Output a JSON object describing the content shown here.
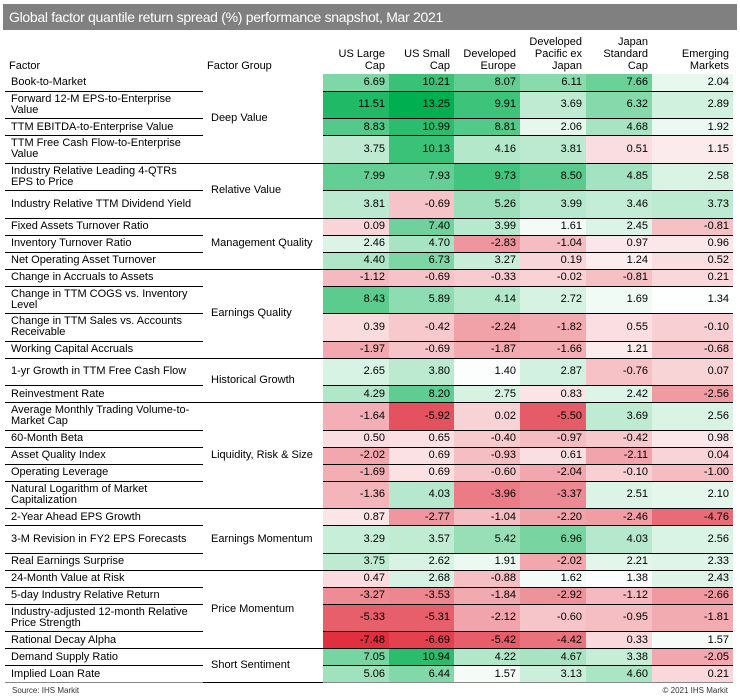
{
  "chart_data": {
    "type": "heatmap",
    "title": "Global factor quantile return spread (%) performance snapshot, Mar 2021",
    "columns": [
      "Factor",
      "Factor Group",
      "US Large Cap",
      "US Small Cap",
      "Developed Europe",
      "Developed Pacific ex Japan",
      "Japan Standard Cap",
      "Emerging Markets"
    ],
    "groups": [
      {
        "name": "Deep Value",
        "rows": [
          {
            "factor": "Book-to-Market",
            "values": [
              6.69,
              10.21,
              8.07,
              6.11,
              7.66,
              2.04
            ]
          },
          {
            "factor": "Forward 12-M EPS-to-Enterprise Value",
            "values": [
              11.51,
              13.25,
              9.91,
              3.69,
              6.32,
              2.89
            ]
          },
          {
            "factor": "TTM EBITDA-to-Enterprise Value",
            "values": [
              8.83,
              10.99,
              8.81,
              2.06,
              4.68,
              1.92
            ]
          },
          {
            "factor": "TTM Free Cash Flow-to-Enterprise Value",
            "values": [
              3.75,
              10.13,
              4.16,
              3.81,
              0.51,
              1.15
            ]
          }
        ]
      },
      {
        "name": "Relative Value",
        "rows": [
          {
            "factor": "Industry Relative Leading 4-QTRs EPS to Price",
            "values": [
              7.99,
              7.93,
              9.73,
              8.5,
              4.85,
              2.58
            ]
          },
          {
            "factor": "Industry Relative TTM Dividend Yield",
            "values": [
              3.81,
              -0.69,
              5.26,
              3.99,
              3.46,
              3.73
            ]
          }
        ]
      },
      {
        "name": "Management Quality",
        "rows": [
          {
            "factor": "Fixed Assets Turnover Ratio",
            "values": [
              0.09,
              7.4,
              3.99,
              1.61,
              2.45,
              -0.81
            ]
          },
          {
            "factor": "Inventory Turnover Ratio",
            "values": [
              2.46,
              4.7,
              -2.83,
              -1.04,
              0.97,
              0.96
            ]
          },
          {
            "factor": "Net Operating Asset Turnover",
            "values": [
              4.4,
              6.73,
              3.27,
              0.19,
              1.24,
              0.52
            ]
          }
        ]
      },
      {
        "name": "Earnings Quality",
        "rows": [
          {
            "factor": "Change in Accruals to Assets",
            "values": [
              -1.12,
              -0.69,
              -0.33,
              -0.02,
              -0.81,
              0.21
            ]
          },
          {
            "factor": "Change in TTM COGS vs. Inventory Level",
            "values": [
              8.43,
              5.89,
              4.14,
              2.72,
              1.69,
              1.34
            ]
          },
          {
            "factor": "Change in TTM Sales vs. Accounts Receivable",
            "values": [
              0.39,
              -0.42,
              -2.24,
              -1.82,
              0.55,
              -0.1
            ]
          },
          {
            "factor": "Working Capital Accruals",
            "values": [
              -1.97,
              -0.69,
              -1.87,
              -1.66,
              1.21,
              -0.68
            ]
          }
        ]
      },
      {
        "name": "Historical Growth",
        "rows": [
          {
            "factor": "1-yr Growth in TTM Free Cash Flow",
            "values": [
              2.65,
              3.8,
              1.4,
              2.87,
              -0.76,
              0.07
            ]
          },
          {
            "factor": "Reinvestment Rate",
            "values": [
              4.29,
              8.2,
              2.75,
              0.83,
              2.42,
              -2.56
            ]
          }
        ]
      },
      {
        "name": "Liquidity, Risk & Size",
        "rows": [
          {
            "factor": "Average Monthly Trading Volume-to-Market Cap",
            "values": [
              -1.64,
              -5.92,
              0.02,
              -5.5,
              3.69,
              2.56
            ]
          },
          {
            "factor": "60-Month Beta",
            "values": [
              0.5,
              0.65,
              -0.4,
              -0.97,
              -0.42,
              0.98
            ]
          },
          {
            "factor": "Asset Quality Index",
            "values": [
              -2.02,
              0.69,
              -0.93,
              0.61,
              -2.11,
              0.04
            ]
          },
          {
            "factor": "Operating Leverage",
            "values": [
              -1.69,
              0.69,
              -0.6,
              -2.04,
              -0.1,
              -1.0
            ]
          },
          {
            "factor": "Natural Logarithm of Market Capitalization",
            "values": [
              -1.36,
              4.03,
              -3.96,
              -3.37,
              2.51,
              2.1
            ]
          }
        ]
      },
      {
        "name": "Earnings Momentum",
        "rows": [
          {
            "factor": "2-Year Ahead EPS Growth",
            "values": [
              0.87,
              -2.77,
              -1.04,
              -2.2,
              -2.46,
              -4.76
            ]
          },
          {
            "factor": "3-M Revision in FY2 EPS Forecasts",
            "values": [
              3.29,
              3.57,
              5.42,
              6.96,
              4.03,
              2.56
            ]
          },
          {
            "factor": "Real Earnings Surprise",
            "values": [
              3.75,
              2.62,
              1.91,
              -2.02,
              2.21,
              2.33
            ]
          }
        ]
      },
      {
        "name": "Price Momentum",
        "rows": [
          {
            "factor": "24-Month Value at Risk",
            "values": [
              0.47,
              2.68,
              -0.88,
              1.62,
              1.38,
              2.43
            ]
          },
          {
            "factor": "5-day Industry Relative Return",
            "values": [
              -3.27,
              -3.53,
              -1.84,
              -2.92,
              -1.12,
              -2.66
            ]
          },
          {
            "factor": "Industry-adjusted 12-month Relative Price Strength",
            "values": [
              -5.33,
              -5.31,
              -2.12,
              -0.6,
              -0.95,
              -1.81
            ]
          },
          {
            "factor": "Rational Decay Alpha",
            "values": [
              -7.48,
              -6.69,
              -5.42,
              -4.42,
              0.33,
              1.57
            ]
          }
        ]
      },
      {
        "name": "Short Sentiment",
        "rows": [
          {
            "factor": "Demand Supply Ratio",
            "values": [
              7.05,
              10.94,
              4.22,
              4.67,
              3.38,
              -2.05
            ]
          },
          {
            "factor": "Implied Loan Rate",
            "values": [
              5.06,
              6.44,
              1.57,
              3.13,
              4.6,
              0.21
            ]
          }
        ]
      }
    ],
    "colors": {
      "positive": "#00b050",
      "negative": "#e03040",
      "neutral": "#ffffff",
      "title_bar": "#808080"
    }
  },
  "footer": {
    "source": "Source: IHS Markit",
    "copyright": "© 2021 IHS Markit"
  }
}
